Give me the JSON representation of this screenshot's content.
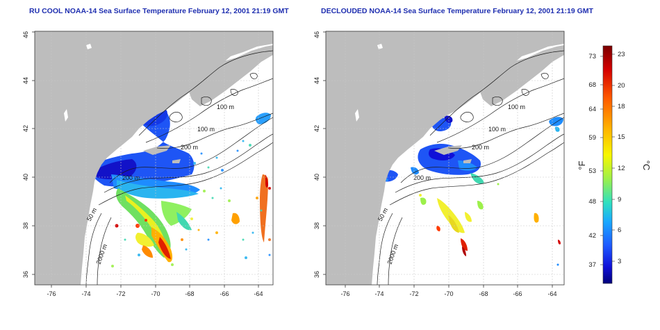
{
  "panels": [
    {
      "title": "RU COOL NOAA-14 Sea Surface Temperature February 12, 2001 21:19 GMT",
      "x_ticks": [
        "-76",
        "-74",
        "-72",
        "-70",
        "-68",
        "-66",
        "-64"
      ],
      "y_ticks": [
        "36",
        "38",
        "40",
        "42",
        "44",
        "46"
      ],
      "contour_labels": [
        "100 m",
        "100 m",
        "200 m",
        "2000 m",
        "50 m",
        "200 m"
      ]
    },
    {
      "title": "DECLOUDED NOAA-14 Sea Surface Temperature February 12, 2001 21:19 GMT",
      "x_ticks": [
        "-76",
        "-74",
        "-72",
        "-70",
        "-68",
        "-66",
        "-64"
      ],
      "y_ticks": [
        "36",
        "38",
        "40",
        "42",
        "44",
        "46"
      ],
      "contour_labels": [
        "100 m",
        "100 m",
        "200 m",
        "2000 m",
        "50 m",
        "200 m"
      ]
    }
  ],
  "colorbar": {
    "fahrenheit_label": "°F",
    "celsius_label": "°C",
    "fahrenheit_ticks": [
      "73",
      "68",
      "64",
      "59",
      "53",
      "48",
      "42",
      "37"
    ],
    "celsius_ticks": [
      "23",
      "20",
      "18",
      "15",
      "12",
      "9",
      "6",
      "3"
    ],
    "colors": [
      "#7a0000",
      "#d40000",
      "#ff5a00",
      "#ffb400",
      "#f7f700",
      "#9cf04a",
      "#2fe0c0",
      "#1aa8ff",
      "#1e5aff",
      "#1010d8",
      "#00007a"
    ]
  }
}
